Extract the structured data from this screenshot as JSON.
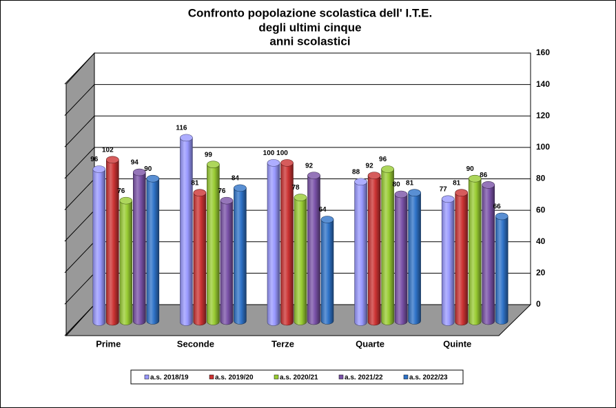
{
  "chart_data": {
    "type": "bar3d",
    "title": [
      "Confronto popolazione scolastica dell' I.T.E.",
      "degli ultimi cinque",
      "anni scolastici"
    ],
    "categories": [
      "Prime",
      "Seconde",
      "Terze",
      "Quarte",
      "Quinte"
    ],
    "series": [
      {
        "name": "a.s. 2018/19",
        "color": "#9999ff",
        "values": [
          96,
          116,
          100,
          88,
          77
        ]
      },
      {
        "name": "a.s. 2019/20",
        "color": "#cc3333",
        "values": [
          102,
          81,
          100,
          92,
          81
        ]
      },
      {
        "name": "a.s. 2020/21",
        "color": "#99cc33",
        "values": [
          76,
          99,
          78,
          96,
          90
        ]
      },
      {
        "name": "a.s. 2021/22",
        "color": "#7a52a8",
        "values": [
          94,
          76,
          92,
          80,
          86
        ]
      },
      {
        "name": "a.s. 2022/23",
        "color": "#2f73c8",
        "values": [
          90,
          84,
          64,
          81,
          66
        ]
      }
    ],
    "ylim": [
      0,
      160
    ],
    "yticks": [
      0,
      20,
      40,
      60,
      80,
      100,
      120,
      140,
      160
    ],
    "grid": true,
    "legend": "bottom"
  }
}
